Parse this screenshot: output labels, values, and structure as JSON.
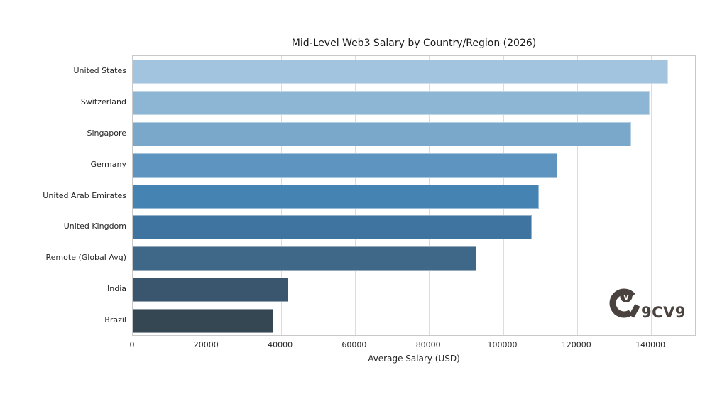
{
  "page": {
    "background_color": "#ffffff"
  },
  "chart_data": {
    "type": "bar",
    "orientation": "horizontal",
    "title": "Mid-Level Web3 Salary by Country/Region (2026)",
    "xlabel": "Average Salary (USD)",
    "ylabel": "",
    "categories": [
      "United States",
      "Switzerland",
      "Singapore",
      "Germany",
      "United Arab Emirates",
      "United Kingdom",
      "Remote (Global Avg)",
      "India",
      "Brazil"
    ],
    "values": [
      145000,
      140000,
      135000,
      115000,
      110000,
      108000,
      93000,
      42000,
      38000
    ],
    "bar_colors": [
      "#a3c4de",
      "#8db5d4",
      "#79a8cb",
      "#5e95c0",
      "#4583b3",
      "#3f73a0",
      "#3f6787",
      "#3a556e",
      "#364754"
    ],
    "xlim": [
      0,
      152250
    ],
    "xticks": [
      0,
      20000,
      40000,
      60000,
      80000,
      100000,
      120000,
      140000
    ],
    "grid": true,
    "grid_color": "#dcdcdc",
    "spine_color": "#c9c9c9",
    "tick_text_color": "#262626",
    "legend": "none"
  },
  "watermark": {
    "logo_text": "9CV9",
    "logo_v_glyph": "v",
    "logo_color": "#4a423e"
  }
}
